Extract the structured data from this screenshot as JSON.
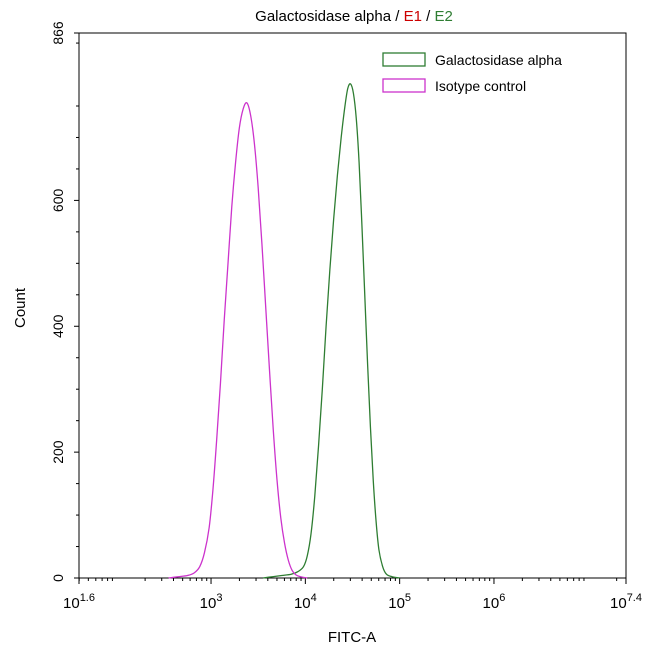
{
  "chart_data": {
    "type": "line",
    "title": [
      {
        "text": "Galactosidase alpha",
        "color": "#000000"
      },
      {
        "text": " / ",
        "color": "#000000"
      },
      {
        "text": "E1",
        "color": "#cc0000"
      },
      {
        "text": " / ",
        "color": "#000000"
      },
      {
        "text": "E2",
        "color": "#2e7d32"
      }
    ],
    "xlabel": "FITC-A",
    "ylabel": "Count",
    "x_scale": "log10",
    "xlim_exponent": [
      1.6,
      7.4
    ],
    "ylim": [
      0,
      866
    ],
    "x_ticks": [
      {
        "base": "10",
        "exp": "1.6"
      },
      {
        "base": "10",
        "exp": "3"
      },
      {
        "base": "10",
        "exp": "4"
      },
      {
        "base": "10",
        "exp": "5"
      },
      {
        "base": "10",
        "exp": "6"
      },
      {
        "base": "10",
        "exp": "7.4"
      }
    ],
    "y_ticks": [
      "0",
      "200",
      "400",
      "600",
      "866"
    ],
    "grid": false,
    "legend_position": "top-right",
    "series": [
      {
        "name": "Galactosidase alpha",
        "color": "#2e7d32",
        "peak_log10": 4.48,
        "peak_count": 785,
        "points_log10_count": [
          [
            3.55,
            0
          ],
          [
            3.65,
            2
          ],
          [
            3.75,
            4
          ],
          [
            3.85,
            6
          ],
          [
            3.92,
            10
          ],
          [
            3.98,
            18
          ],
          [
            4.02,
            35
          ],
          [
            4.06,
            70
          ],
          [
            4.1,
            130
          ],
          [
            4.14,
            210
          ],
          [
            4.18,
            300
          ],
          [
            4.22,
            400
          ],
          [
            4.26,
            490
          ],
          [
            4.3,
            570
          ],
          [
            4.34,
            640
          ],
          [
            4.38,
            700
          ],
          [
            4.42,
            750
          ],
          [
            4.45,
            778
          ],
          [
            4.48,
            785
          ],
          [
            4.51,
            770
          ],
          [
            4.54,
            730
          ],
          [
            4.57,
            660
          ],
          [
            4.6,
            560
          ],
          [
            4.63,
            450
          ],
          [
            4.66,
            340
          ],
          [
            4.69,
            240
          ],
          [
            4.72,
            155
          ],
          [
            4.75,
            90
          ],
          [
            4.78,
            45
          ],
          [
            4.82,
            18
          ],
          [
            4.86,
            6
          ],
          [
            4.92,
            2
          ],
          [
            5.0,
            0
          ]
        ]
      },
      {
        "name": "Isotype control",
        "color": "#cc33cc",
        "peak_log10": 3.38,
        "peak_count": 755,
        "points_log10_count": [
          [
            2.55,
            0
          ],
          [
            2.65,
            2
          ],
          [
            2.75,
            4
          ],
          [
            2.82,
            8
          ],
          [
            2.88,
            18
          ],
          [
            2.93,
            40
          ],
          [
            2.98,
            80
          ],
          [
            3.02,
            140
          ],
          [
            3.06,
            220
          ],
          [
            3.1,
            310
          ],
          [
            3.14,
            410
          ],
          [
            3.18,
            500
          ],
          [
            3.22,
            590
          ],
          [
            3.26,
            660
          ],
          [
            3.3,
            715
          ],
          [
            3.34,
            745
          ],
          [
            3.38,
            755
          ],
          [
            3.42,
            735
          ],
          [
            3.46,
            690
          ],
          [
            3.5,
            620
          ],
          [
            3.54,
            530
          ],
          [
            3.58,
            430
          ],
          [
            3.62,
            330
          ],
          [
            3.66,
            235
          ],
          [
            3.7,
            155
          ],
          [
            3.74,
            95
          ],
          [
            3.78,
            55
          ],
          [
            3.82,
            28
          ],
          [
            3.86,
            12
          ],
          [
            3.9,
            5
          ],
          [
            3.95,
            2
          ],
          [
            4.02,
            0
          ]
        ]
      }
    ]
  }
}
